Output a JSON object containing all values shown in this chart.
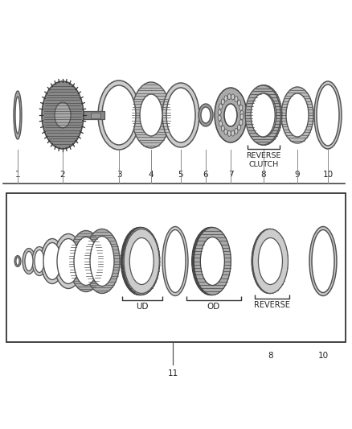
{
  "bg_color": "#ffffff",
  "line_color": "#333333",
  "part_edge": "#444444",
  "part_fill": "#bbbbbb",
  "part_fill_light": "#d8d8d8",
  "top_labels": [
    "1",
    "2",
    "3",
    "4",
    "5",
    "6",
    "7",
    "8",
    "9",
    "10"
  ],
  "reverse_clutch_label": "REVERSE\nCLUTCH",
  "bottom_group_labels": [
    [
      "UD",
      185
    ],
    [
      "OD",
      280
    ],
    [
      "REVERSE",
      355
    ]
  ],
  "bottom_nums": [
    [
      "8",
      348
    ],
    [
      "10",
      405
    ],
    [
      "11",
      210
    ]
  ]
}
